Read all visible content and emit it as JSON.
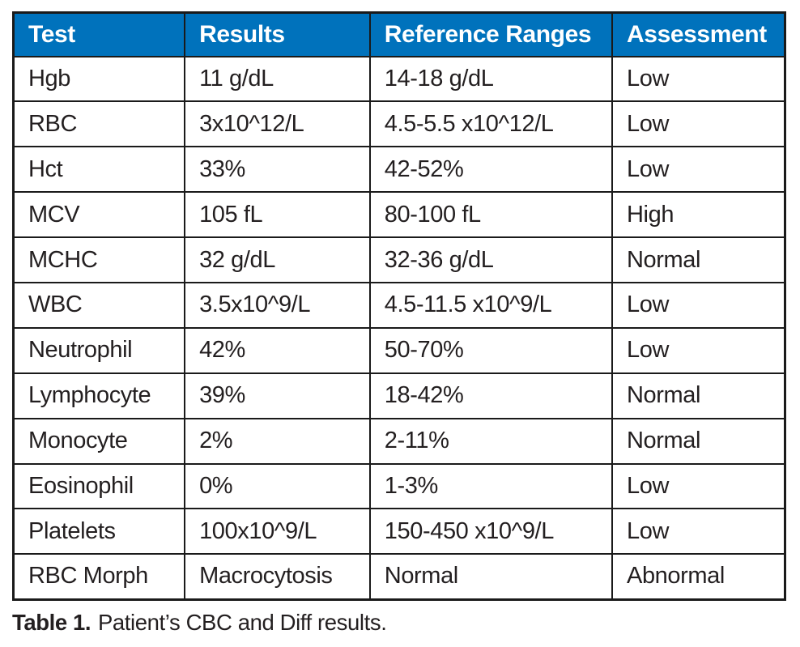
{
  "chart_data": {
    "type": "table",
    "columns": [
      "Test",
      "Results",
      "Reference Ranges",
      "Assessment"
    ],
    "rows": [
      [
        "Hgb",
        "11 g/dL",
        "14-18 g/dL",
        "Low"
      ],
      [
        "RBC",
        "3x10^12/L",
        "4.5-5.5 x10^12/L",
        "Low"
      ],
      [
        "Hct",
        "33%",
        "42-52%",
        "Low"
      ],
      [
        "MCV",
        "105 fL",
        "80-100 fL",
        "High"
      ],
      [
        "MCHC",
        "32 g/dL",
        "32-36 g/dL",
        "Normal"
      ],
      [
        "WBC",
        "3.5x10^9/L",
        "4.5-11.5 x10^9/L",
        "Low"
      ],
      [
        "Neutrophil",
        "42%",
        "50-70%",
        "Low"
      ],
      [
        "Lymphocyte",
        "39%",
        "18-42%",
        "Normal"
      ],
      [
        "Monocyte",
        "2%",
        "2-11%",
        "Normal"
      ],
      [
        "Eosinophil",
        "0%",
        "1-3%",
        "Low"
      ],
      [
        "Platelets",
        "100x10^9/L",
        "150-450 x10^9/L",
        "Low"
      ],
      [
        "RBC Morph",
        "Macrocytosis",
        "Normal",
        "Abnormal"
      ]
    ],
    "caption_label": "Table 1.",
    "caption_text": "Patient’s CBC and Diff results."
  },
  "colors": {
    "header_bg": "#0072bc",
    "header_text": "#ffffff",
    "body_text": "#231f20",
    "border": "#1a1a1a"
  }
}
